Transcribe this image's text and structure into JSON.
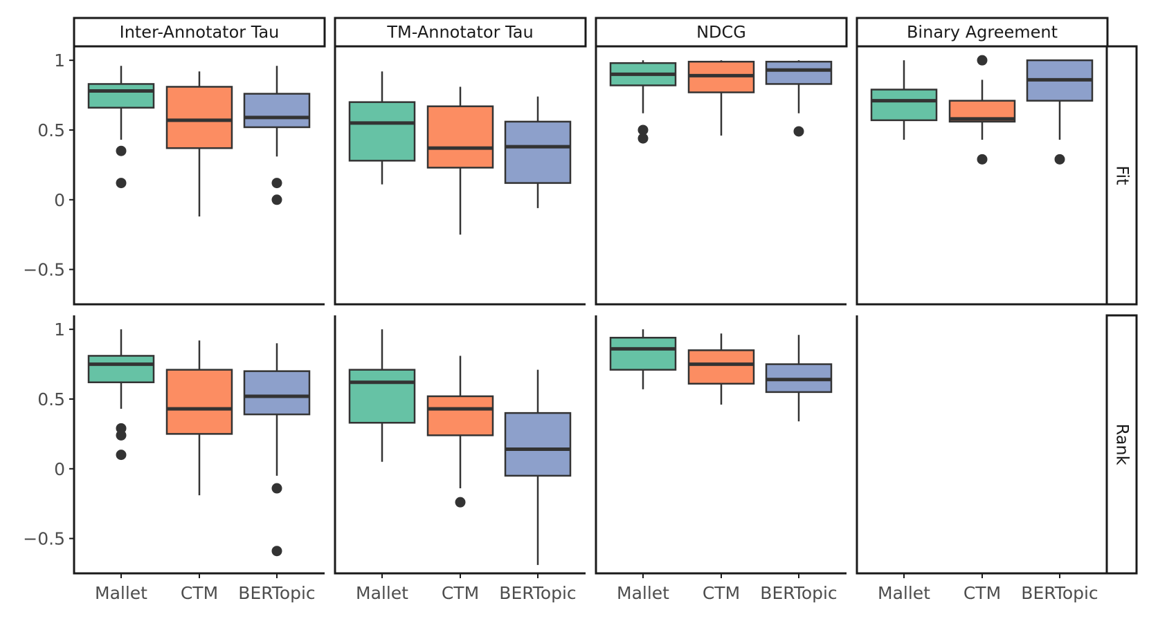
{
  "chart_data": {
    "type": "boxplot",
    "facet_columns": [
      "Inter-Annotator Tau",
      "TM-Annotator Tau",
      "NDCG",
      "Binary Agreement"
    ],
    "facet_rows": [
      "Fit",
      "Rank"
    ],
    "categories": [
      "Mallet",
      "CTM",
      "BERTopic"
    ],
    "colors": {
      "Mallet": "#66c2a5",
      "CTM": "#fc8d62",
      "BERTopic": "#8da0cb"
    },
    "ylim": [
      -0.75,
      1.1
    ],
    "yticks": [
      1,
      0.5,
      0,
      -0.5
    ],
    "ytick_labels": [
      "1",
      "0.5",
      "0",
      "−0.5"
    ],
    "panels": [
      {
        "row": "Fit",
        "column": "Inter-Annotator Tau",
        "boxes": [
          {
            "category": "Mallet",
            "whisker_low": 0.43,
            "q1": 0.66,
            "median": 0.78,
            "q3": 0.83,
            "whisker_high": 0.96,
            "outliers": [
              0.35,
              0.12
            ]
          },
          {
            "category": "CTM",
            "whisker_low": -0.12,
            "q1": 0.37,
            "median": 0.57,
            "q3": 0.81,
            "whisker_high": 0.92,
            "outliers": []
          },
          {
            "category": "BERTopic",
            "whisker_low": 0.31,
            "q1": 0.52,
            "median": 0.59,
            "q3": 0.76,
            "whisker_high": 0.96,
            "outliers": [
              0.12,
              0.0
            ]
          }
        ]
      },
      {
        "row": "Fit",
        "column": "TM-Annotator Tau",
        "boxes": [
          {
            "category": "Mallet",
            "whisker_low": 0.11,
            "q1": 0.28,
            "median": 0.55,
            "q3": 0.7,
            "whisker_high": 0.92,
            "outliers": []
          },
          {
            "category": "CTM",
            "whisker_low": -0.25,
            "q1": 0.23,
            "median": 0.37,
            "q3": 0.67,
            "whisker_high": 0.81,
            "outliers": []
          },
          {
            "category": "BERTopic",
            "whisker_low": -0.06,
            "q1": 0.12,
            "median": 0.38,
            "q3": 0.56,
            "whisker_high": 0.74,
            "outliers": []
          }
        ]
      },
      {
        "row": "Fit",
        "column": "NDCG",
        "boxes": [
          {
            "category": "Mallet",
            "whisker_low": 0.62,
            "q1": 0.82,
            "median": 0.9,
            "q3": 0.98,
            "whisker_high": 1.0,
            "outliers": [
              0.5,
              0.44
            ]
          },
          {
            "category": "CTM",
            "whisker_low": 0.46,
            "q1": 0.77,
            "median": 0.89,
            "q3": 0.99,
            "whisker_high": 1.0,
            "outliers": []
          },
          {
            "category": "BERTopic",
            "whisker_low": 0.62,
            "q1": 0.83,
            "median": 0.93,
            "q3": 0.99,
            "whisker_high": 1.0,
            "outliers": [
              0.49
            ]
          }
        ]
      },
      {
        "row": "Fit",
        "column": "Binary Agreement",
        "boxes": [
          {
            "category": "Mallet",
            "whisker_low": 0.43,
            "q1": 0.57,
            "median": 0.71,
            "q3": 0.79,
            "whisker_high": 1.0,
            "outliers": []
          },
          {
            "category": "CTM",
            "whisker_low": 0.43,
            "q1": 0.56,
            "median": 0.58,
            "q3": 0.71,
            "whisker_high": 0.86,
            "outliers": [
              1.0,
              0.29
            ]
          },
          {
            "category": "BERTopic",
            "whisker_low": 0.43,
            "q1": 0.71,
            "median": 0.86,
            "q3": 1.0,
            "whisker_high": 1.0,
            "outliers": [
              0.29
            ]
          }
        ]
      },
      {
        "row": "Rank",
        "column": "Inter-Annotator Tau",
        "boxes": [
          {
            "category": "Mallet",
            "whisker_low": 0.43,
            "q1": 0.62,
            "median": 0.75,
            "q3": 0.81,
            "whisker_high": 1.0,
            "outliers": [
              0.29,
              0.24,
              0.1
            ]
          },
          {
            "category": "CTM",
            "whisker_low": -0.19,
            "q1": 0.25,
            "median": 0.43,
            "q3": 0.71,
            "whisker_high": 0.92,
            "outliers": []
          },
          {
            "category": "BERTopic",
            "whisker_low": -0.05,
            "q1": 0.39,
            "median": 0.52,
            "q3": 0.7,
            "whisker_high": 0.9,
            "outliers": [
              -0.14,
              -0.59
            ]
          }
        ]
      },
      {
        "row": "Rank",
        "column": "TM-Annotator Tau",
        "boxes": [
          {
            "category": "Mallet",
            "whisker_low": 0.05,
            "q1": 0.33,
            "median": 0.62,
            "q3": 0.71,
            "whisker_high": 1.0,
            "outliers": []
          },
          {
            "category": "CTM",
            "whisker_low": -0.14,
            "q1": 0.24,
            "median": 0.43,
            "q3": 0.52,
            "whisker_high": 0.81,
            "outliers": [
              -0.24
            ]
          },
          {
            "category": "BERTopic",
            "whisker_low": -0.69,
            "q1": -0.05,
            "median": 0.14,
            "q3": 0.4,
            "whisker_high": 0.71,
            "outliers": []
          }
        ]
      },
      {
        "row": "Rank",
        "column": "NDCG",
        "boxes": [
          {
            "category": "Mallet",
            "whisker_low": 0.57,
            "q1": 0.71,
            "median": 0.86,
            "q3": 0.94,
            "whisker_high": 1.0,
            "outliers": []
          },
          {
            "category": "CTM",
            "whisker_low": 0.46,
            "q1": 0.61,
            "median": 0.75,
            "q3": 0.85,
            "whisker_high": 0.97,
            "outliers": []
          },
          {
            "category": "BERTopic",
            "whisker_low": 0.34,
            "q1": 0.55,
            "median": 0.64,
            "q3": 0.75,
            "whisker_high": 0.96,
            "outliers": []
          }
        ]
      },
      {
        "row": "Rank",
        "column": "Binary Agreement",
        "boxes": []
      }
    ]
  }
}
